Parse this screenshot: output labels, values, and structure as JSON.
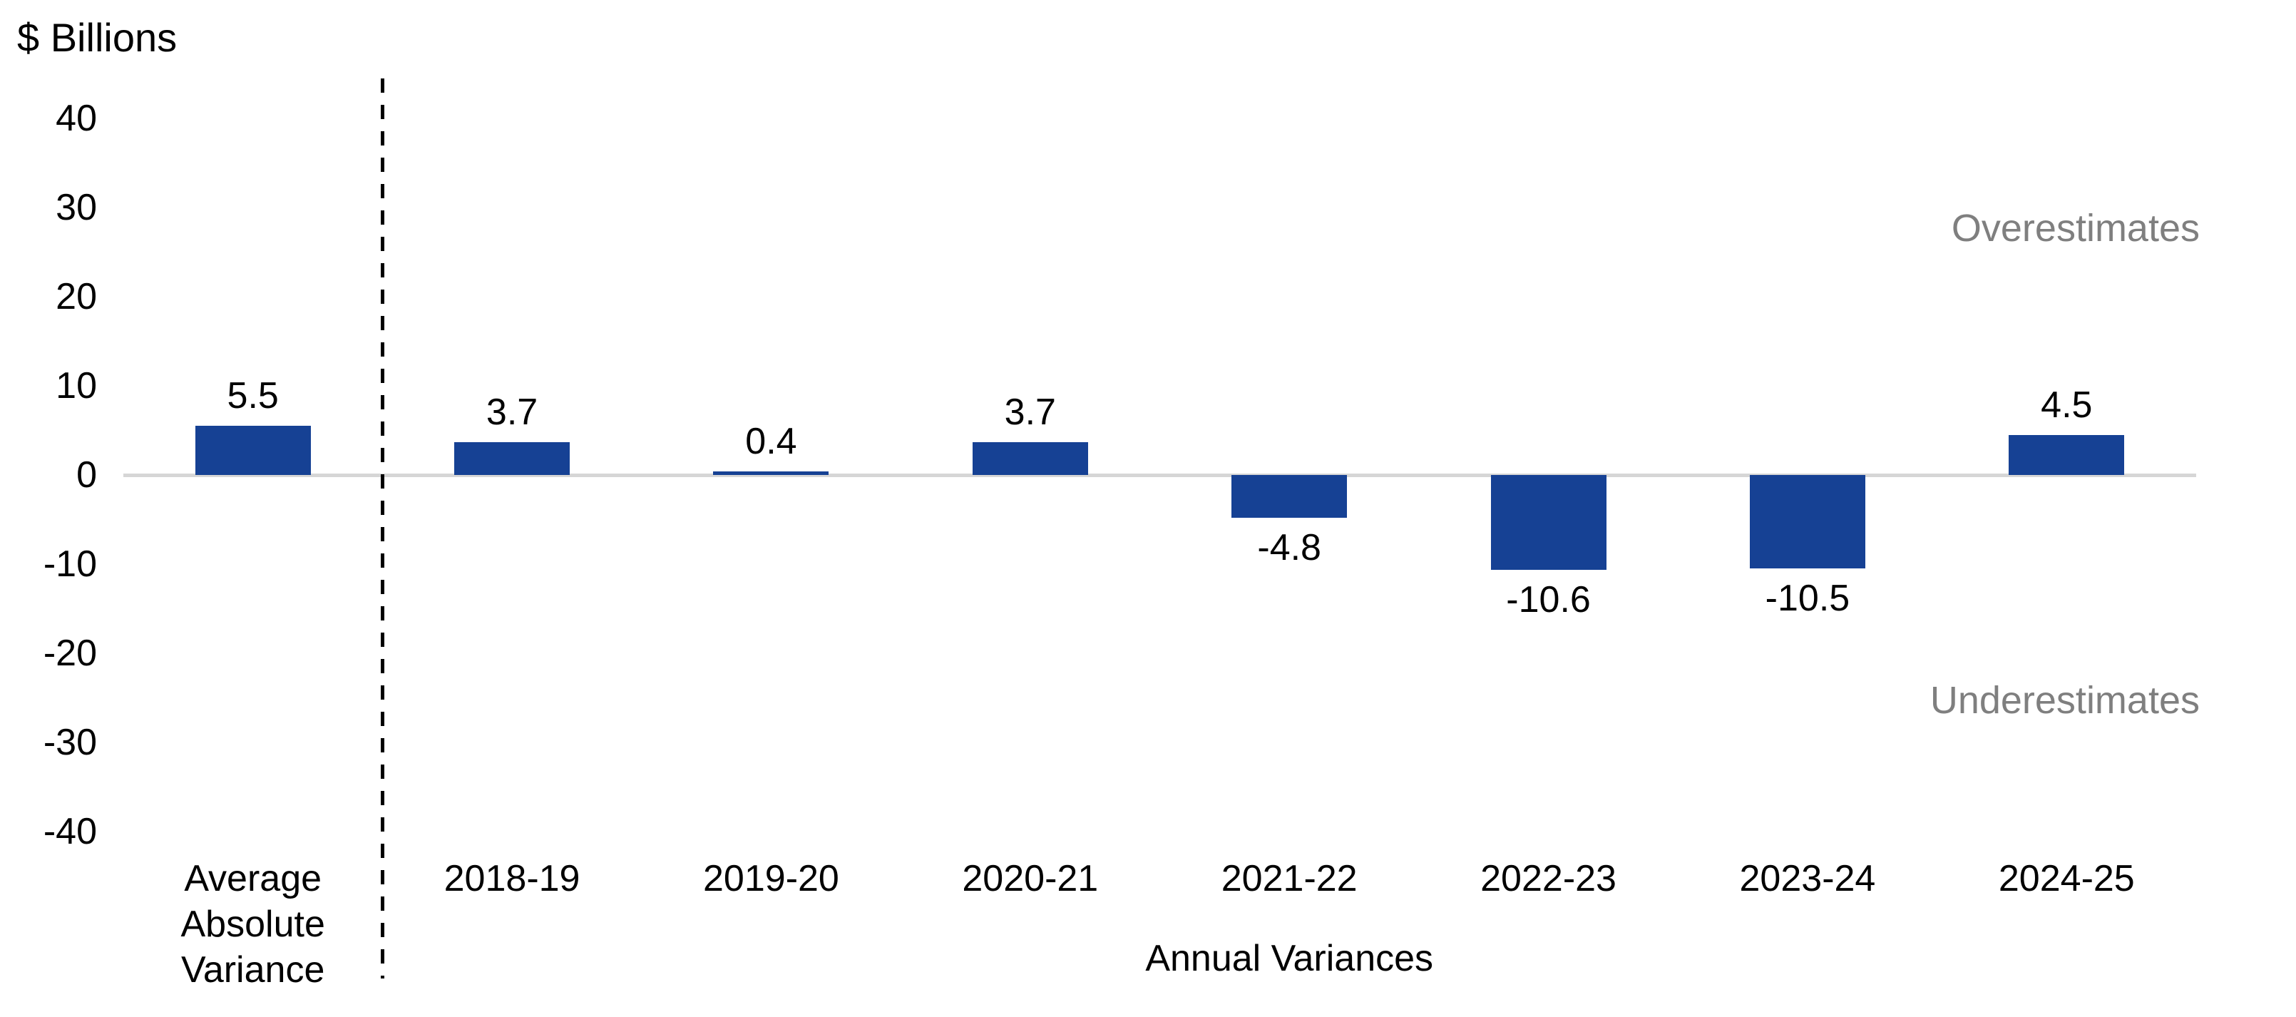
{
  "chart_data": {
    "type": "bar",
    "units_label": "$ Billions",
    "categories": [
      "Average\nAbsolute\nVariance",
      "2018-19",
      "2019-20",
      "2020-21",
      "2021-22",
      "2022-23",
      "2023-24",
      "2024-25"
    ],
    "values": [
      5.5,
      3.7,
      0.4,
      3.7,
      -4.8,
      -10.6,
      -10.5,
      4.5
    ],
    "data_labels": [
      "5.5",
      "3.7",
      "0.4",
      "3.7",
      "-4.8",
      "-10.6",
      "-10.5",
      "4.5"
    ],
    "xlabel": "Annual Variances",
    "ylabel": "$ Billions",
    "ylim": [
      -40,
      40
    ],
    "ytick_step": 10,
    "yticks": [
      40,
      30,
      20,
      10,
      0,
      -10,
      -20,
      -30,
      -40
    ],
    "grid": false,
    "legend": false,
    "separator_after_category": 0,
    "annotations": {
      "over": "Overestimates",
      "under": "Underestimates"
    },
    "colors": {
      "bar": "#164194",
      "annotation_gray": "#7f7f7f",
      "zero_line": "#d6d6d6",
      "separator": "#000000",
      "text": "#000000"
    }
  }
}
